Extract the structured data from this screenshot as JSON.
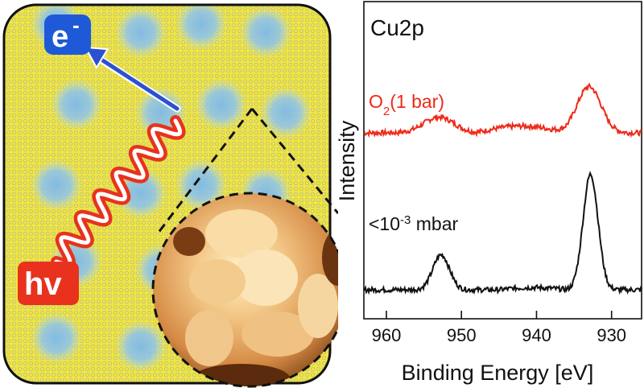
{
  "illustration": {
    "electron_label": "e",
    "electron_charge": "-",
    "photon_label": "hv",
    "colors": {
      "lattice_yellow": "#f2e63a",
      "lattice_dot": "#b8bf9a",
      "island_blue": "#6aaee0",
      "electron_bg": "#1e5ad8",
      "photon_red": "#e8321e",
      "arrow_blue": "#2b50d0"
    }
  },
  "chart_data": {
    "type": "line",
    "title": "Cu2p",
    "xlabel": "Binding Energy [eV]",
    "ylabel": "Intensity",
    "xlim": [
      963,
      926
    ],
    "x_reversed": true,
    "xticks": [
      960,
      950,
      940,
      930
    ],
    "yticks_shown": false,
    "series": [
      {
        "name": "O2(1 bar)",
        "label_main": "O",
        "label_sub": "2",
        "label_rest": "(1 bar)",
        "color": "#ee2a1a",
        "baseline": 1.6,
        "peaks": [
          {
            "x": 953.0,
            "height": 0.28,
            "width": 2.0
          },
          {
            "x": 933.0,
            "height": 0.82,
            "width": 1.6
          }
        ],
        "shoulder": {
          "x_from": 948,
          "x_to": 936,
          "height": 0.12
        }
      },
      {
        "name": "<10^-3 mbar",
        "label_main": "<10",
        "label_sup": "-3",
        "label_rest": " mbar",
        "color": "#111111",
        "baseline": 0.0,
        "peaks": [
          {
            "x": 952.7,
            "height": 0.62,
            "width": 1.1
          },
          {
            "x": 932.8,
            "height": 2.05,
            "width": 1.0
          }
        ],
        "shoulder": {
          "x_from": 945,
          "x_to": 936,
          "height": 0.04
        }
      }
    ]
  }
}
